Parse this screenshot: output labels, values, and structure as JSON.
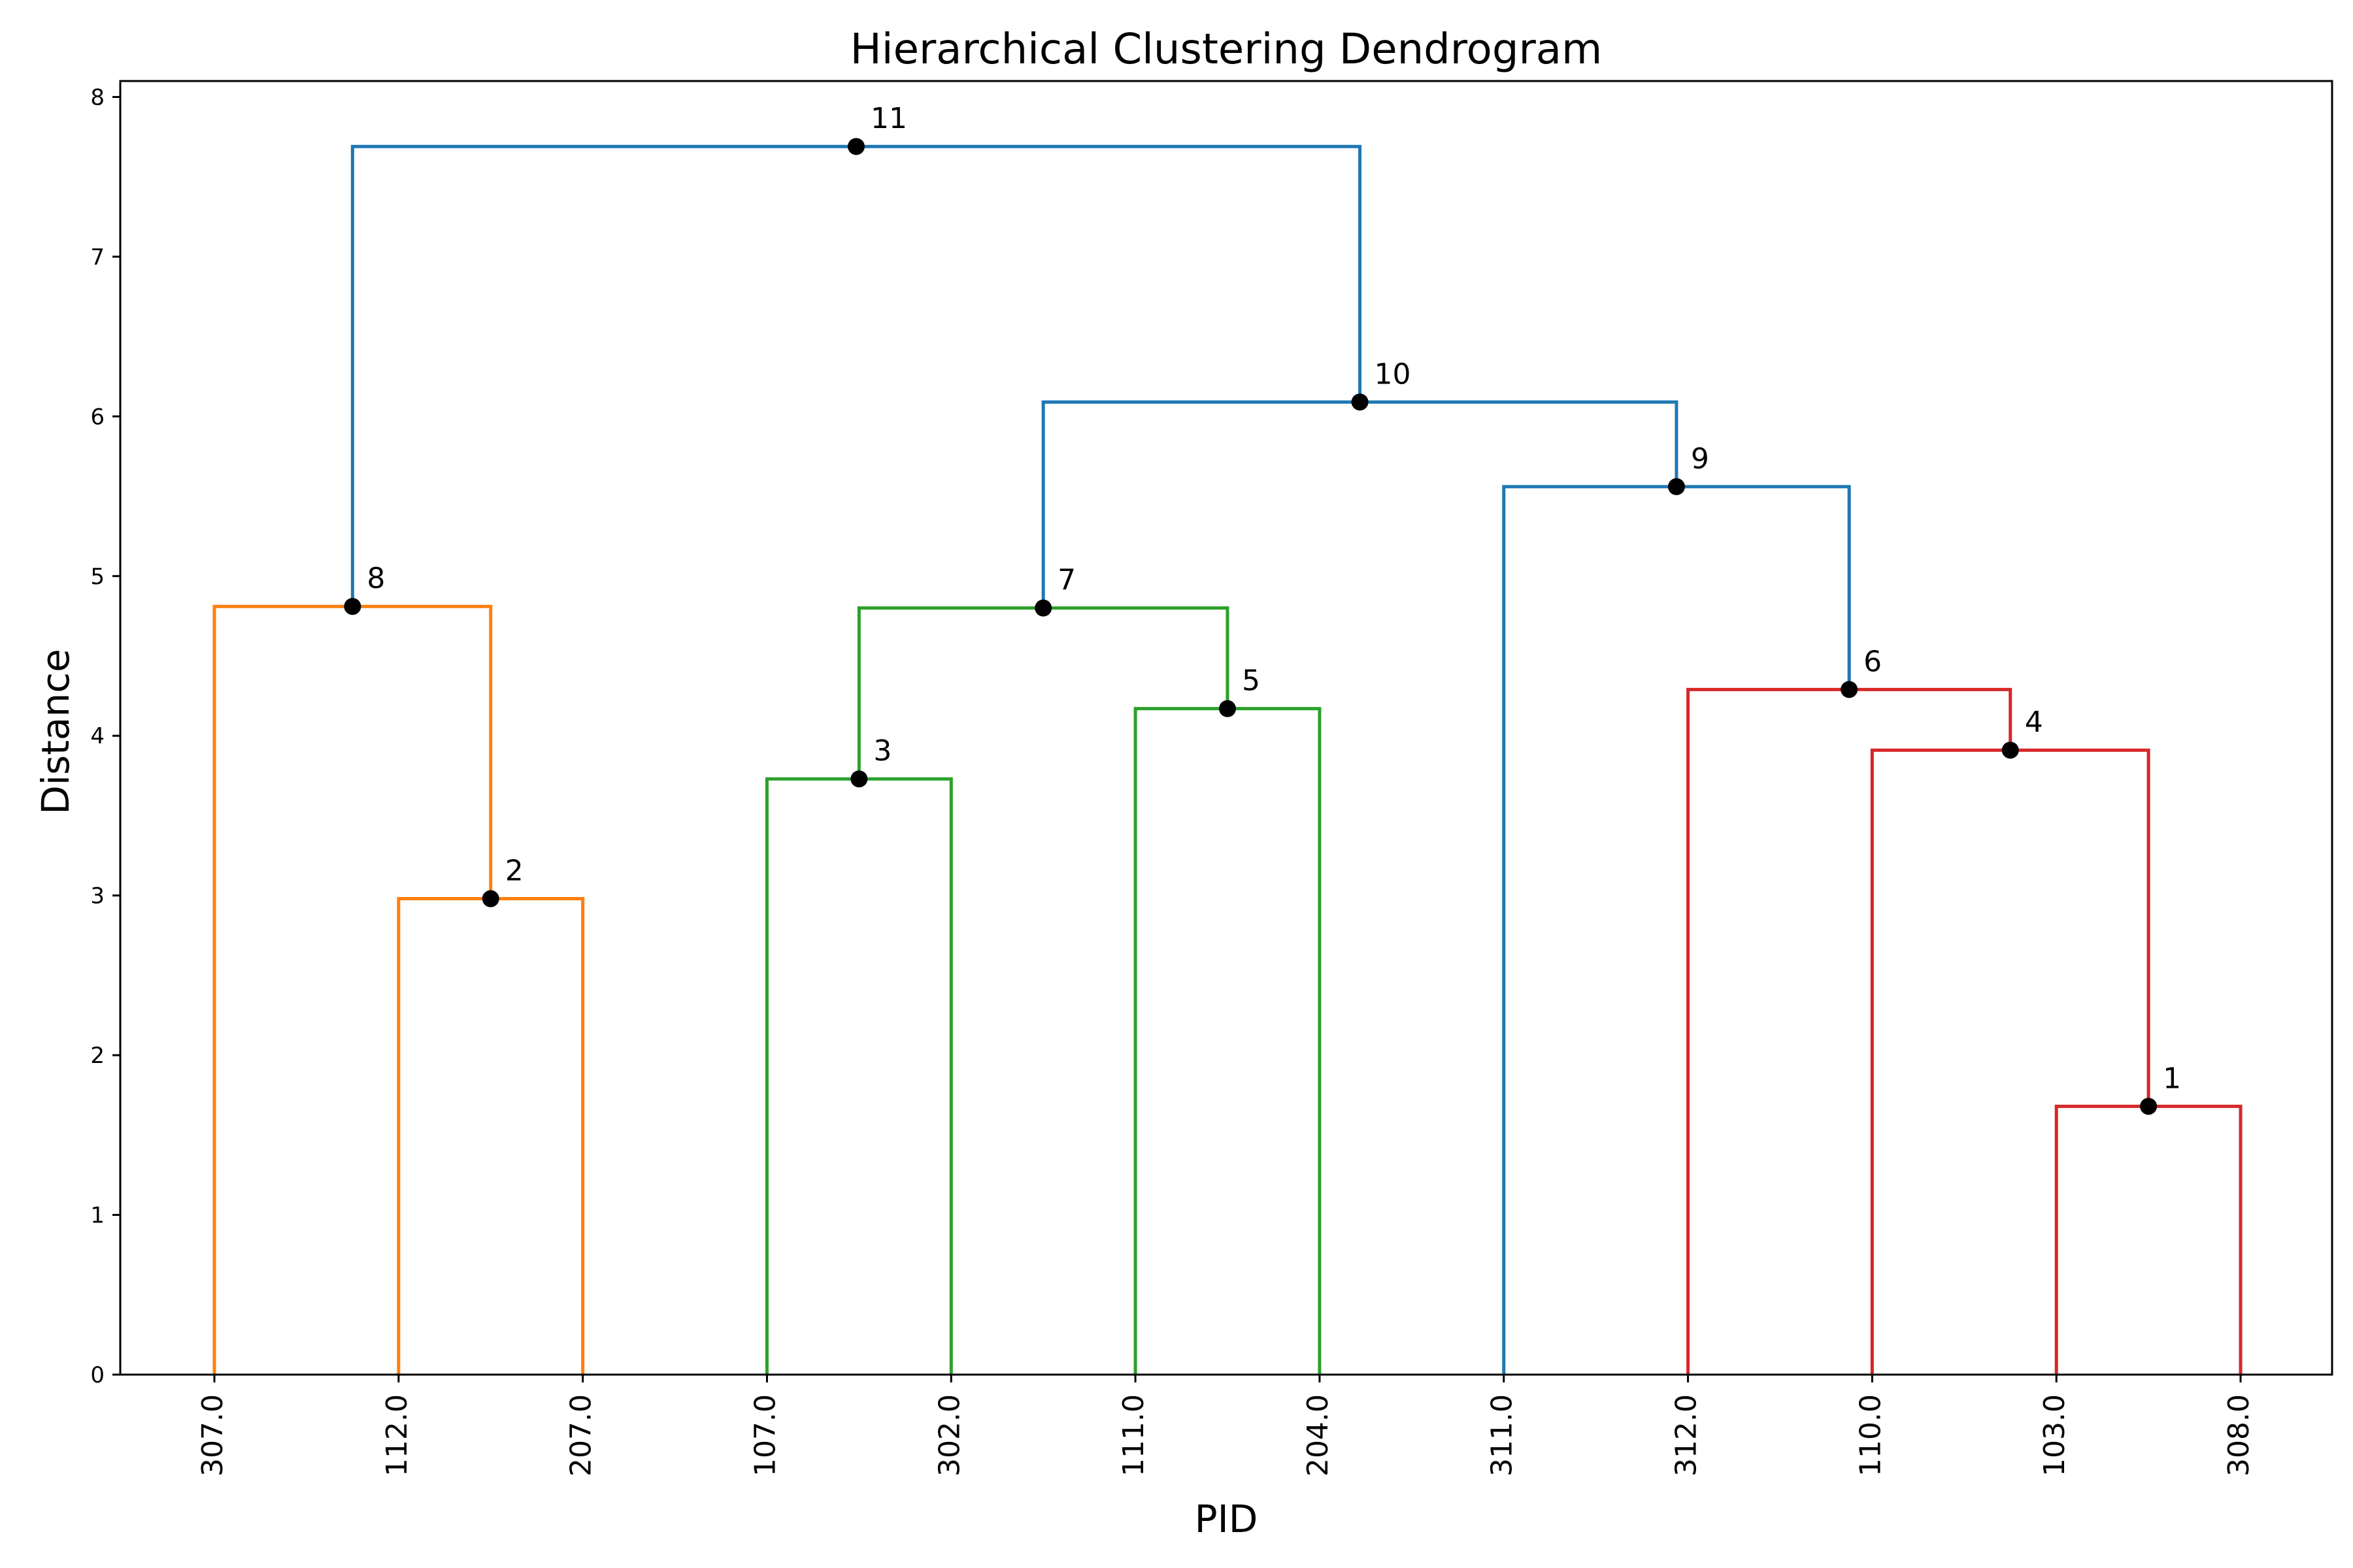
{
  "chart_data": {
    "type": "dendrogram",
    "title": "Hierarchical Clustering Dendrogram",
    "xlabel": "PID",
    "ylabel": "Distance",
    "ylim": [
      0,
      8.1
    ],
    "yticks": [
      0,
      1,
      2,
      3,
      4,
      5,
      6,
      7,
      8
    ],
    "leaves": [
      "307.0",
      "112.0",
      "207.0",
      "107.0",
      "302.0",
      "111.0",
      "204.0",
      "311.0",
      "312.0",
      "110.0",
      "103.0",
      "308.0"
    ],
    "merges": [
      {
        "label": "1",
        "children": [
          "leaf:10",
          "leaf:11"
        ],
        "distance": 1.68,
        "color": "#d62728"
      },
      {
        "label": "2",
        "children": [
          "leaf:1",
          "leaf:2"
        ],
        "distance": 2.98,
        "color": "#ff7f0e"
      },
      {
        "label": "3",
        "children": [
          "leaf:3",
          "leaf:4"
        ],
        "distance": 3.73,
        "color": "#2ca02c"
      },
      {
        "label": "4",
        "children": [
          "leaf:9",
          "node:1"
        ],
        "distance": 3.91,
        "color": "#d62728"
      },
      {
        "label": "5",
        "children": [
          "leaf:5",
          "leaf:6"
        ],
        "distance": 4.17,
        "color": "#2ca02c"
      },
      {
        "label": "6",
        "children": [
          "leaf:8",
          "node:4"
        ],
        "distance": 4.29,
        "color": "#d62728"
      },
      {
        "label": "7",
        "children": [
          "node:3",
          "node:5"
        ],
        "distance": 4.8,
        "color": "#2ca02c"
      },
      {
        "label": "8",
        "children": [
          "leaf:0",
          "node:2"
        ],
        "distance": 4.81,
        "color": "#ff7f0e"
      },
      {
        "label": "9",
        "children": [
          "leaf:7",
          "node:6"
        ],
        "distance": 5.56,
        "color": "#1f77b4"
      },
      {
        "label": "10",
        "children": [
          "node:7",
          "node:9"
        ],
        "distance": 6.09,
        "color": "#1f77b4"
      },
      {
        "label": "11",
        "children": [
          "node:8",
          "node:10"
        ],
        "distance": 7.69,
        "color": "#1f77b4"
      }
    ],
    "grid": false,
    "colors": {
      "above_threshold": "#1f77b4",
      "cluster_orange": "#ff7f0e",
      "cluster_green": "#2ca02c",
      "cluster_red": "#d62728",
      "node_marker": "#000000"
    }
  }
}
